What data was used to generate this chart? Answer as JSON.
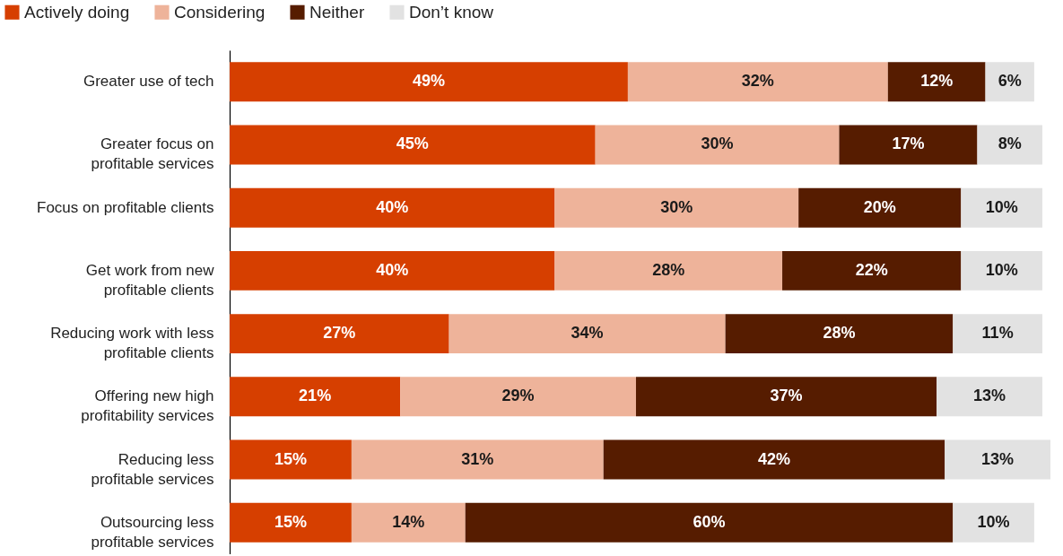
{
  "chart_data": {
    "type": "bar",
    "orientation": "horizontal",
    "stacked": true,
    "legend": "top left",
    "grid": false,
    "categories": [
      "Greater use of tech",
      "Greater focus on profitable services",
      "Focus on profitable clients",
      "Get work from new profitable clients",
      "Reducing work with less profitable clients",
      "Offering new high profitability services",
      "Reducing less profitable services",
      "Outsourcing less profitable services"
    ],
    "series": [
      {
        "name": "Actively doing",
        "color": "#d63f00",
        "values": [
          49,
          45,
          40,
          40,
          27,
          21,
          15,
          15
        ],
        "value_labels": [
          "49%",
          "45%",
          "40%",
          "40%",
          "27%",
          "21%",
          "15%",
          "15%"
        ]
      },
      {
        "name": "Considering",
        "color": "#eeb39a",
        "values": [
          32,
          30,
          30,
          28,
          34,
          29,
          31,
          14
        ],
        "value_labels": [
          "32%",
          "30%",
          "30%",
          "28%",
          "34%",
          "29%",
          "31%",
          "14%"
        ]
      },
      {
        "name": "Neither",
        "color": "#561c00",
        "values": [
          12,
          17,
          20,
          22,
          28,
          37,
          42,
          60
        ],
        "value_labels": [
          "12%",
          "17%",
          "20%",
          "22%",
          "28%",
          "37%",
          "42%",
          "60%"
        ]
      },
      {
        "name": "Don’t know",
        "color": "#e2e2e2",
        "values": [
          6,
          8,
          10,
          10,
          11,
          13,
          13,
          10
        ],
        "value_labels": [
          "6%",
          "8%",
          "10%",
          "10%",
          "11%",
          "13%",
          "13%",
          "10%"
        ]
      }
    ]
  }
}
